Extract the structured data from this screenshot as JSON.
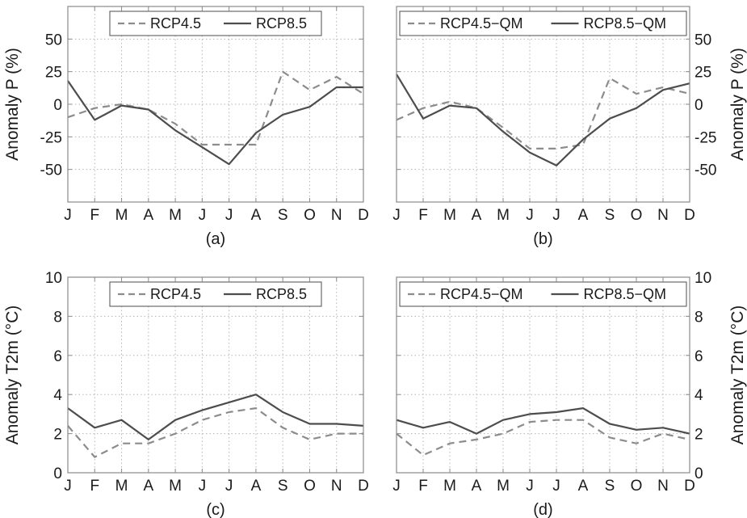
{
  "chart_data": [
    {
      "type": "line",
      "panel_label": "(a)",
      "ylabel": "Anomaly P (%)",
      "ylabel_side": "left",
      "categories": [
        "J",
        "F",
        "M",
        "A",
        "M",
        "J",
        "J",
        "A",
        "S",
        "O",
        "N",
        "D"
      ],
      "ylim": [
        -75,
        75
      ],
      "yticks": [
        -50,
        -25,
        0,
        25,
        50
      ],
      "grid": true,
      "legend_position": "top-center",
      "series": [
        {
          "name": "RCP4.5",
          "style": "dashed",
          "color": "#8c8c8c",
          "values": [
            -10,
            -3,
            0,
            -4,
            -15,
            -31,
            -31,
            -31,
            25,
            11,
            21,
            8
          ]
        },
        {
          "name": "RCP8.5",
          "style": "solid",
          "color": "#4d4d4d",
          "values": [
            18,
            -12,
            -1,
            -4,
            -20,
            -33,
            -46,
            -22,
            -8,
            -2,
            13,
            13
          ]
        }
      ]
    },
    {
      "type": "line",
      "panel_label": "(b)",
      "ylabel": "Anomaly P (%)",
      "ylabel_side": "right",
      "categories": [
        "J",
        "F",
        "M",
        "A",
        "M",
        "J",
        "J",
        "A",
        "S",
        "O",
        "N",
        "D"
      ],
      "ylim": [
        -75,
        75
      ],
      "yticks": [
        -50,
        -25,
        0,
        25,
        50
      ],
      "grid": true,
      "legend_position": "top-center",
      "series": [
        {
          "name": "RCP4.5−QM",
          "style": "dashed",
          "color": "#8c8c8c",
          "values": [
            -12,
            -3,
            2,
            -3,
            -18,
            -34,
            -34,
            -31,
            20,
            8,
            13,
            8
          ]
        },
        {
          "name": "RCP8.5−QM",
          "style": "solid",
          "color": "#4d4d4d",
          "values": [
            23,
            -11,
            -1,
            -3,
            -21,
            -37,
            -47,
            -27,
            -11,
            -3,
            11,
            16
          ]
        }
      ]
    },
    {
      "type": "line",
      "panel_label": "(c)",
      "ylabel": "Anomaly T2m (°C)",
      "ylabel_side": "left",
      "categories": [
        "J",
        "F",
        "M",
        "A",
        "M",
        "J",
        "J",
        "A",
        "S",
        "O",
        "N",
        "D"
      ],
      "ylim": [
        0,
        10
      ],
      "yticks": [
        0,
        2,
        4,
        6,
        8,
        10
      ],
      "grid": true,
      "legend_position": "top-center",
      "series": [
        {
          "name": "RCP4.5",
          "style": "dashed",
          "color": "#8c8c8c",
          "values": [
            2.4,
            0.8,
            1.5,
            1.5,
            2.0,
            2.7,
            3.1,
            3.3,
            2.3,
            1.7,
            2.0,
            2.0
          ]
        },
        {
          "name": "RCP8.5",
          "style": "solid",
          "color": "#4d4d4d",
          "values": [
            3.3,
            2.3,
            2.7,
            1.7,
            2.7,
            3.2,
            3.6,
            4.0,
            3.1,
            2.5,
            2.5,
            2.4
          ]
        }
      ]
    },
    {
      "type": "line",
      "panel_label": "(d)",
      "ylabel": "Anomaly T2m (°C)",
      "ylabel_side": "right",
      "categories": [
        "J",
        "F",
        "M",
        "A",
        "M",
        "J",
        "J",
        "A",
        "S",
        "O",
        "N",
        "D"
      ],
      "ylim": [
        0,
        10
      ],
      "yticks": [
        0,
        2,
        4,
        6,
        8,
        10
      ],
      "grid": true,
      "legend_position": "top-center",
      "series": [
        {
          "name": "RCP4.5−QM",
          "style": "dashed",
          "color": "#8c8c8c",
          "values": [
            2.0,
            0.9,
            1.5,
            1.7,
            2.0,
            2.6,
            2.7,
            2.7,
            1.8,
            1.5,
            2.0,
            1.7
          ]
        },
        {
          "name": "RCP8.5−QM",
          "style": "solid",
          "color": "#4d4d4d",
          "values": [
            2.7,
            2.3,
            2.6,
            2.0,
            2.7,
            3.0,
            3.1,
            3.3,
            2.5,
            2.2,
            2.3,
            2.0
          ]
        }
      ]
    }
  ]
}
